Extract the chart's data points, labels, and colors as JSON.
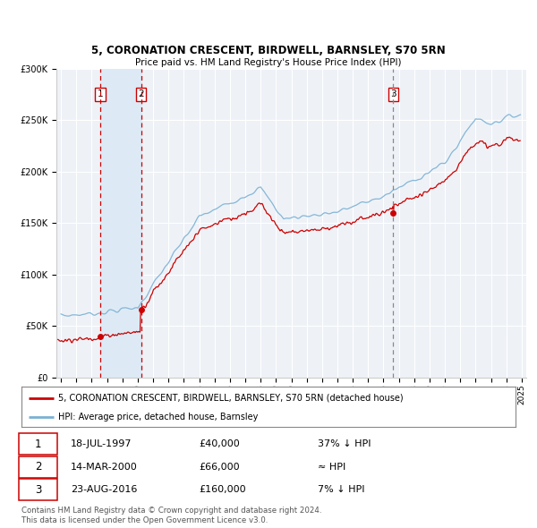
{
  "title": "5, CORONATION CRESCENT, BIRDWELL, BARNSLEY, S70 5RN",
  "subtitle": "Price paid vs. HM Land Registry's House Price Index (HPI)",
  "legend_house": "5, CORONATION CRESCENT, BIRDWELL, BARNSLEY, S70 5RN (detached house)",
  "legend_hpi": "HPI: Average price, detached house, Barnsley",
  "footer1": "Contains HM Land Registry data © Crown copyright and database right 2024.",
  "footer2": "This data is licensed under the Open Government Licence v3.0.",
  "transactions": [
    {
      "num": 1,
      "date": "18-JUL-1997",
      "price": "£40,000",
      "relation": "37% ↓ HPI",
      "year": 1997.54,
      "value": 40000
    },
    {
      "num": 2,
      "date": "14-MAR-2000",
      "price": "£66,000",
      "relation": "≈ HPI",
      "year": 2000.21,
      "value": 66000
    },
    {
      "num": 3,
      "date": "23-AUG-2016",
      "price": "£160,000",
      "relation": "7% ↓ HPI",
      "year": 2016.64,
      "value": 160000
    }
  ],
  "hpi_color": "#7ab0d4",
  "house_color": "#cc0000",
  "vline12_color": "#cc0000",
  "vline3_color": "#888888",
  "shade_color": "#ddeaf5",
  "background_chart": "#eef2f7",
  "grid_color": "#ffffff",
  "ylim": [
    0,
    300000
  ],
  "yticks": [
    0,
    50000,
    100000,
    150000,
    200000,
    250000,
    300000
  ],
  "xlim_start": 1994.7,
  "xlim_end": 2025.3
}
